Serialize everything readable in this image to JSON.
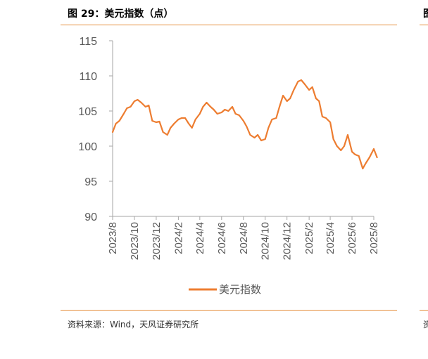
{
  "figure": {
    "title": "图 29：美元指数（点）",
    "source": "资料来源：Wind，天风证券研究所",
    "edge_title_glyph": "图",
    "edge_source_glyph": "资"
  },
  "colors": {
    "accent": "#e48e3c",
    "line": "#ed7d31",
    "axis": "#a6a6a6",
    "text": "#595959"
  },
  "chart_data": {
    "type": "line",
    "title": "",
    "xlabel": "",
    "ylabel": "",
    "ylim": [
      90,
      115
    ],
    "yticks": [
      "90",
      "95",
      "100",
      "105",
      "110",
      "115"
    ],
    "xticks": [
      "2023/8",
      "2023/10",
      "2023/12",
      "2024/2",
      "2024/4",
      "2024/6",
      "2024/8",
      "2024/10",
      "2024/12",
      "2025/2",
      "2025/4",
      "2025/6",
      "2025/8"
    ],
    "grid": false,
    "legend_position": "bottom",
    "series": [
      {
        "name": "美元指数",
        "x": [
          "2023/8/1",
          "2023/8/10",
          "2023/8/20",
          "2023/9/1",
          "2023/9/10",
          "2023/9/20",
          "2023/10/1",
          "2023/10/10",
          "2023/10/20",
          "2023/11/1",
          "2023/11/10",
          "2023/11/20",
          "2023/12/1",
          "2023/12/10",
          "2023/12/20",
          "2024/1/1",
          "2024/1/10",
          "2024/1/20",
          "2024/2/1",
          "2024/2/10",
          "2024/2/20",
          "2024/3/1",
          "2024/3/10",
          "2024/3/20",
          "2024/4/1",
          "2024/4/10",
          "2024/4/20",
          "2024/5/1",
          "2024/5/10",
          "2024/5/20",
          "2024/6/1",
          "2024/6/10",
          "2024/6/20",
          "2024/7/1",
          "2024/7/10",
          "2024/7/20",
          "2024/8/1",
          "2024/8/10",
          "2024/8/20",
          "2024/9/1",
          "2024/9/10",
          "2024/9/20",
          "2024/10/1",
          "2024/10/10",
          "2024/10/20",
          "2024/11/1",
          "2024/11/10",
          "2024/11/20",
          "2024/12/1",
          "2024/12/10",
          "2024/12/20",
          "2025/1/1",
          "2025/1/10",
          "2025/1/20",
          "2025/2/1",
          "2025/2/10",
          "2025/2/20",
          "2025/3/1",
          "2025/3/10",
          "2025/3/20",
          "2025/4/1",
          "2025/4/10",
          "2025/4/20",
          "2025/5/1",
          "2025/5/10",
          "2025/5/20",
          "2025/6/1",
          "2025/6/10",
          "2025/6/20",
          "2025/7/1",
          "2025/7/10",
          "2025/7/20",
          "2025/8/1",
          "2025/8/10"
        ],
        "values": [
          102.0,
          103.2,
          103.6,
          104.6,
          105.4,
          105.6,
          106.4,
          106.6,
          106.2,
          105.6,
          105.8,
          103.6,
          103.4,
          103.5,
          102.0,
          101.6,
          102.6,
          103.2,
          103.8,
          104.0,
          104.0,
          103.2,
          102.6,
          103.8,
          104.6,
          105.6,
          106.2,
          105.6,
          105.2,
          104.6,
          104.8,
          105.2,
          105.0,
          105.6,
          104.6,
          104.4,
          103.6,
          102.8,
          101.6,
          101.2,
          101.6,
          100.8,
          101.0,
          102.6,
          103.8,
          104.0,
          105.6,
          107.2,
          106.4,
          106.8,
          108.0,
          109.2,
          109.4,
          108.8,
          108.0,
          108.4,
          106.8,
          106.4,
          104.2,
          104.0,
          103.4,
          101.0,
          100.0,
          99.4,
          100.0,
          101.6,
          99.2,
          98.8,
          98.6,
          96.8,
          97.6,
          98.4,
          99.6,
          98.4
        ]
      }
    ]
  }
}
